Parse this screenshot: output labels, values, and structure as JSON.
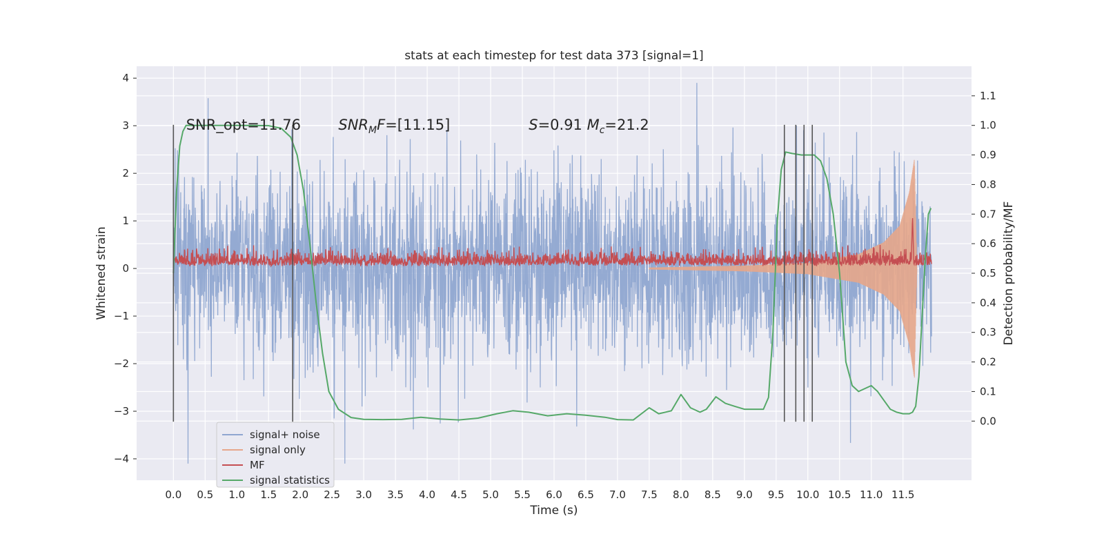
{
  "chart_data": {
    "type": "line",
    "title": "stats at each timestep for test data 373 [signal=1]",
    "xlabel": "Time (s)",
    "ylabel": "Whitened strain",
    "y2label": "Detection probability/MF",
    "xlim": [
      -0.58,
      12.58
    ],
    "ylim": [
      -4.45,
      4.25
    ],
    "y2lim": [
      -0.2,
      1.2
    ],
    "xticks": [
      0.0,
      0.5,
      1.0,
      1.5,
      2.0,
      2.5,
      3.0,
      3.5,
      4.0,
      4.5,
      5.0,
      5.5,
      6.0,
      6.5,
      7.0,
      7.5,
      8.0,
      8.5,
      9.0,
      9.5,
      10.0,
      10.5,
      11.0,
      11.5
    ],
    "xtick_labels": [
      "0.0",
      "0.5",
      "1.0",
      "1.5",
      "2.0",
      "2.5",
      "3.0",
      "3.5",
      "4.0",
      "4.5",
      "5.0",
      "5.5",
      "6.0",
      "6.5",
      "7.0",
      "7.5",
      "8.0",
      "8.5",
      "9.0",
      "9.5",
      "10.0",
      "10.5",
      "11.0",
      "11.5"
    ],
    "yticks": [
      -4,
      -3,
      -2,
      -1,
      0,
      1,
      2,
      3,
      4
    ],
    "ytick_labels": [
      "−4",
      "−3",
      "−2",
      "−1",
      "0",
      "1",
      "2",
      "3",
      "4"
    ],
    "y2ticks": [
      0.0,
      0.1,
      0.2,
      0.3,
      0.4,
      0.5,
      0.6,
      0.7,
      0.8,
      0.9,
      1.0,
      1.1
    ],
    "y2tick_labels": [
      "0.0",
      "0.1",
      "0.2",
      "0.3",
      "0.4",
      "0.5",
      "0.6",
      "0.7",
      "0.8",
      "0.9",
      "1.0",
      "1.1"
    ],
    "grid": true,
    "legend_position": "lower-left",
    "annotations": [
      {
        "text": "SNR_opt=11.76",
        "x": 0.2,
        "y": 3.0
      },
      {
        "text": "SNR_MF=[11.15]",
        "x": 2.6,
        "y": 3.0
      },
      {
        "text": "S=0.91   M_c=21.2",
        "x": 5.6,
        "y": 3.0
      }
    ],
    "vertical_lines": {
      "x": [
        0.0,
        1.88,
        9.63,
        9.81,
        9.94,
        10.07
      ],
      "y_range": [
        -3.22,
        3.02
      ]
    },
    "series": [
      {
        "name": "signal+ noise",
        "axis": "left",
        "color": "#8fa6d0",
        "style": "dense-noise",
        "t_range": [
          0.0,
          11.95
        ],
        "typical_amplitude": [
          -2.0,
          2.0
        ],
        "peak_range": [
          -4.1,
          3.9
        ]
      },
      {
        "name": "signal only",
        "axis": "left",
        "color": "#e6a68a",
        "style": "chirp",
        "t_range": [
          7.5,
          11.72
        ],
        "envelope": [
          [
            7.5,
            0.02
          ],
          [
            9.0,
            0.06
          ],
          [
            10.0,
            0.12
          ],
          [
            10.8,
            0.3
          ],
          [
            11.2,
            0.55
          ],
          [
            11.45,
            0.9
          ],
          [
            11.6,
            1.6
          ],
          [
            11.68,
            2.3
          ],
          [
            11.72,
            0.0
          ]
        ]
      },
      {
        "name": "MF",
        "axis": "left",
        "color": "#c44e52",
        "style": "noisy-baseline",
        "t_range": [
          0.0,
          11.95
        ],
        "baseline": 0.12,
        "spread": 0.3,
        "peak": {
          "x": 11.65,
          "y": 1.0
        }
      },
      {
        "name": "signal statistics",
        "axis": "right",
        "color": "#55a868",
        "style": "line",
        "x": [
          0.0,
          0.05,
          0.1,
          0.15,
          0.2,
          0.3,
          0.5,
          1.0,
          1.5,
          1.7,
          1.85,
          1.95,
          2.05,
          2.15,
          2.25,
          2.35,
          2.45,
          2.6,
          2.8,
          3.0,
          3.3,
          3.6,
          3.9,
          4.2,
          4.5,
          4.8,
          5.1,
          5.35,
          5.6,
          5.9,
          6.2,
          6.5,
          6.8,
          7.0,
          7.25,
          7.5,
          7.65,
          7.85,
          8.0,
          8.15,
          8.3,
          8.4,
          8.55,
          8.7,
          8.85,
          9.0,
          9.15,
          9.3,
          9.38,
          9.45,
          9.52,
          9.58,
          9.65,
          9.75,
          9.9,
          10.0,
          10.1,
          10.2,
          10.3,
          10.4,
          10.5,
          10.55,
          10.6,
          10.7,
          10.8,
          10.9,
          11.0,
          11.1,
          11.2,
          11.3,
          11.4,
          11.5,
          11.6,
          11.65,
          11.7,
          11.75,
          11.8,
          11.85,
          11.9,
          11.94
        ],
        "y": [
          0.5,
          0.78,
          0.93,
          0.98,
          1.0,
          1.0,
          1.0,
          1.0,
          0.999,
          0.99,
          0.96,
          0.9,
          0.78,
          0.6,
          0.4,
          0.23,
          0.1,
          0.04,
          0.012,
          0.006,
          0.005,
          0.006,
          0.013,
          0.007,
          0.004,
          0.01,
          0.025,
          0.035,
          0.03,
          0.018,
          0.025,
          0.02,
          0.013,
          0.005,
          0.004,
          0.045,
          0.025,
          0.035,
          0.09,
          0.045,
          0.03,
          0.04,
          0.082,
          0.06,
          0.05,
          0.04,
          0.04,
          0.04,
          0.08,
          0.3,
          0.68,
          0.85,
          0.91,
          0.905,
          0.9,
          0.9,
          0.9,
          0.88,
          0.82,
          0.7,
          0.5,
          0.35,
          0.2,
          0.12,
          0.1,
          0.11,
          0.12,
          0.1,
          0.07,
          0.04,
          0.03,
          0.025,
          0.025,
          0.03,
          0.05,
          0.15,
          0.35,
          0.55,
          0.7,
          0.72
        ]
      }
    ]
  }
}
